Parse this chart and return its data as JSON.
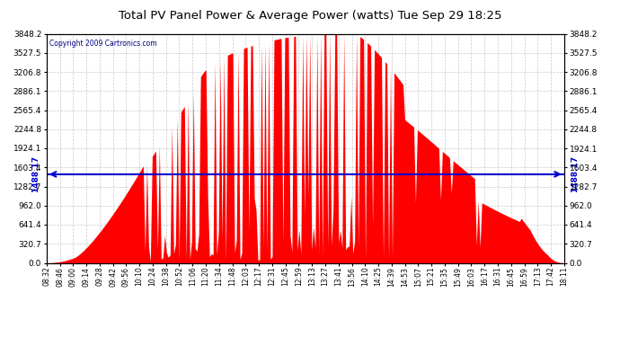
{
  "title": "Total PV Panel Power & Average Power (watts) Tue Sep 29 18:25",
  "copyright": "Copyright 2009 Cartronics.com",
  "avg_power": 1488.17,
  "y_max": 3848.2,
  "y_ticks": [
    0.0,
    320.7,
    641.4,
    962.0,
    1282.7,
    1603.4,
    1924.1,
    2244.8,
    2565.4,
    2886.1,
    3206.8,
    3527.5,
    3848.2
  ],
  "x_labels": [
    "08:32",
    "08:46",
    "09:00",
    "09:14",
    "09:28",
    "09:42",
    "09:56",
    "10:10",
    "10:24",
    "10:38",
    "10:52",
    "11:06",
    "11:20",
    "11:34",
    "11:48",
    "12:03",
    "12:17",
    "12:31",
    "12:45",
    "12:59",
    "13:13",
    "13:27",
    "13:41",
    "13:56",
    "14:10",
    "14:25",
    "14:39",
    "14:53",
    "15:07",
    "15:21",
    "15:35",
    "15:49",
    "16:03",
    "16:17",
    "16:31",
    "16:45",
    "16:59",
    "17:13",
    "17:42",
    "18:11"
  ],
  "bg_color": "#ffffff",
  "fill_color": "#ff0000",
  "line_color": "#0000cc",
  "grid_color": "#bbbbbb",
  "title_color": "#000000",
  "border_color": "#000000",
  "avg_label_color": "#0000cc"
}
